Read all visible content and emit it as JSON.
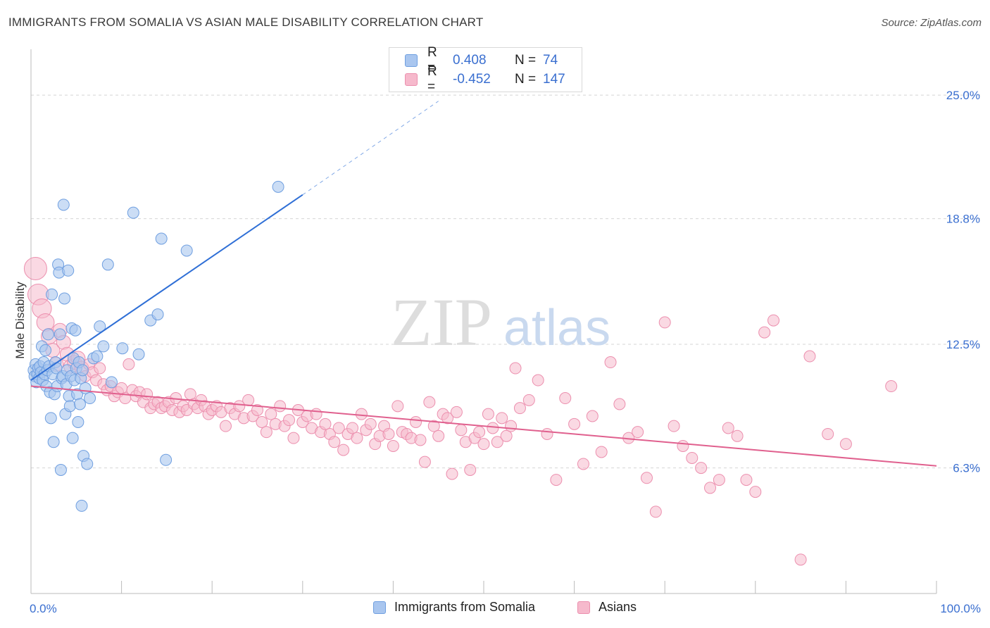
{
  "header": {
    "title": "IMMIGRANTS FROM SOMALIA VS ASIAN MALE DISABILITY CORRELATION CHART",
    "source": "Source: ZipAtlas.com"
  },
  "watermark": {
    "zip": "ZIP",
    "atlas": "atlas"
  },
  "colors": {
    "blue_fill": "#a9c6ef",
    "blue_stroke": "#6f9fe0",
    "blue_line": "#2f6fd6",
    "pink_fill": "#f6b9cc",
    "pink_stroke": "#ec8fae",
    "pink_line": "#e0608e",
    "tick_text": "#3a6fd0",
    "grid": "#d5d5d5"
  },
  "legend": {
    "rows": [
      {
        "r_label": "R =",
        "r_value": "0.408",
        "n_label": "N =",
        "n_value": "74"
      },
      {
        "r_label": "R =",
        "r_value": "-0.452",
        "n_label": "N =",
        "n_value": "147"
      }
    ]
  },
  "bottom_legend": {
    "series1": "Immigrants from Somalia",
    "series2": "Asians"
  },
  "chart_data": {
    "type": "scatter",
    "title": "IMMIGRANTS FROM SOMALIA VS ASIAN MALE DISABILITY CORRELATION CHART",
    "xlabel": "",
    "ylabel": "Male Disability",
    "xlim": [
      0,
      100
    ],
    "ylim": [
      0,
      27.3
    ],
    "x_tick_labels": [
      "0.0%",
      "100.0%"
    ],
    "y_ticks": [
      {
        "value": 6.3,
        "label": "6.3%"
      },
      {
        "value": 12.5,
        "label": "12.5%"
      },
      {
        "value": 18.8,
        "label": "18.8%"
      },
      {
        "value": 25.0,
        "label": "25.0%"
      }
    ],
    "grid": true,
    "legend_position": "top-center",
    "series": [
      {
        "name": "Immigrants from Somalia",
        "color": "#6f9fe0",
        "trend": {
          "x": [
            0,
            30
          ],
          "y": [
            10.7,
            20.0
          ],
          "dashed_to": [
            45,
            24.7
          ]
        },
        "points": [
          [
            0.3,
            11.2
          ],
          [
            0.4,
            10.9
          ],
          [
            0.5,
            11.5
          ],
          [
            0.6,
            10.6
          ],
          [
            0.7,
            11.0
          ],
          [
            0.8,
            11.3
          ],
          [
            0.9,
            10.8
          ],
          [
            1.0,
            11.4
          ],
          [
            1.1,
            11.1
          ],
          [
            1.2,
            12.4
          ],
          [
            1.3,
            10.7
          ],
          [
            1.4,
            11.6
          ],
          [
            1.5,
            11.0
          ],
          [
            1.6,
            12.2
          ],
          [
            1.7,
            10.4
          ],
          [
            1.8,
            11.2
          ],
          [
            1.9,
            13.0
          ],
          [
            2.0,
            11.4
          ],
          [
            2.1,
            10.1
          ],
          [
            2.2,
            8.8
          ],
          [
            2.3,
            15.0
          ],
          [
            2.4,
            11.0
          ],
          [
            2.5,
            7.6
          ],
          [
            2.6,
            10.0
          ],
          [
            2.7,
            11.6
          ],
          [
            2.8,
            11.3
          ],
          [
            2.9,
            10.4
          ],
          [
            3.0,
            16.5
          ],
          [
            3.1,
            16.1
          ],
          [
            3.2,
            13.0
          ],
          [
            3.3,
            6.2
          ],
          [
            3.4,
            10.8
          ],
          [
            3.5,
            10.9
          ],
          [
            3.6,
            19.5
          ],
          [
            3.7,
            14.8
          ],
          [
            3.8,
            9.0
          ],
          [
            3.9,
            10.5
          ],
          [
            4.0,
            11.2
          ],
          [
            4.1,
            16.2
          ],
          [
            4.2,
            9.9
          ],
          [
            4.3,
            9.4
          ],
          [
            4.4,
            10.9
          ],
          [
            4.5,
            13.3
          ],
          [
            4.6,
            7.8
          ],
          [
            4.7,
            11.8
          ],
          [
            4.8,
            10.7
          ],
          [
            4.9,
            13.2
          ],
          [
            5.0,
            11.3
          ],
          [
            5.1,
            10.0
          ],
          [
            5.2,
            8.6
          ],
          [
            5.3,
            11.6
          ],
          [
            5.4,
            9.5
          ],
          [
            5.5,
            10.8
          ],
          [
            5.6,
            4.4
          ],
          [
            5.7,
            11.2
          ],
          [
            5.8,
            6.9
          ],
          [
            6.0,
            10.3
          ],
          [
            6.2,
            6.5
          ],
          [
            6.5,
            9.8
          ],
          [
            6.9,
            11.8
          ],
          [
            7.3,
            11.9
          ],
          [
            7.6,
            13.4
          ],
          [
            8.0,
            12.4
          ],
          [
            8.5,
            16.5
          ],
          [
            8.9,
            10.6
          ],
          [
            10.1,
            12.3
          ],
          [
            11.3,
            19.1
          ],
          [
            11.9,
            12.0
          ],
          [
            13.2,
            13.7
          ],
          [
            14.0,
            14.0
          ],
          [
            14.4,
            17.8
          ],
          [
            14.9,
            6.7
          ],
          [
            17.2,
            17.2
          ],
          [
            27.3,
            20.4
          ]
        ]
      },
      {
        "name": "Asians",
        "color": "#ec8fae",
        "trend": {
          "x": [
            0,
            100
          ],
          "y": [
            10.4,
            6.4
          ]
        },
        "points": [
          [
            0.5,
            16.3
          ],
          [
            0.8,
            15.0
          ],
          [
            1.2,
            14.3
          ],
          [
            1.6,
            13.6
          ],
          [
            2.0,
            12.9
          ],
          [
            2.4,
            12.2
          ],
          [
            2.8,
            11.5
          ],
          [
            3.2,
            13.2
          ],
          [
            3.6,
            12.6
          ],
          [
            4.0,
            12.0
          ],
          [
            4.4,
            11.4
          ],
          [
            4.8,
            11.6
          ],
          [
            5.2,
            11.8
          ],
          [
            5.6,
            11.3
          ],
          [
            6.0,
            10.9
          ],
          [
            6.4,
            11.5
          ],
          [
            6.8,
            11.1
          ],
          [
            7.2,
            10.7
          ],
          [
            7.6,
            11.3
          ],
          [
            8.0,
            10.5
          ],
          [
            8.4,
            10.2
          ],
          [
            8.8,
            10.4
          ],
          [
            9.2,
            9.9
          ],
          [
            9.6,
            10.1
          ],
          [
            10.0,
            10.3
          ],
          [
            10.4,
            9.8
          ],
          [
            10.8,
            11.5
          ],
          [
            11.2,
            10.2
          ],
          [
            11.6,
            9.9
          ],
          [
            12.0,
            10.1
          ],
          [
            12.4,
            9.6
          ],
          [
            12.8,
            10.0
          ],
          [
            13.2,
            9.3
          ],
          [
            13.6,
            9.5
          ],
          [
            14.0,
            9.6
          ],
          [
            14.4,
            9.3
          ],
          [
            14.8,
            9.4
          ],
          [
            15.2,
            9.6
          ],
          [
            15.6,
            9.2
          ],
          [
            16.0,
            9.8
          ],
          [
            16.4,
            9.1
          ],
          [
            16.8,
            9.4
          ],
          [
            17.2,
            9.2
          ],
          [
            17.6,
            10.0
          ],
          [
            18.0,
            9.5
          ],
          [
            18.4,
            9.3
          ],
          [
            18.8,
            9.7
          ],
          [
            19.2,
            9.4
          ],
          [
            19.6,
            9.0
          ],
          [
            20.0,
            9.2
          ],
          [
            20.5,
            9.4
          ],
          [
            21.0,
            9.1
          ],
          [
            21.5,
            8.4
          ],
          [
            22.0,
            9.3
          ],
          [
            22.5,
            9.0
          ],
          [
            23.0,
            9.4
          ],
          [
            23.5,
            8.8
          ],
          [
            24.0,
            9.7
          ],
          [
            24.5,
            8.9
          ],
          [
            25.0,
            9.2
          ],
          [
            25.5,
            8.6
          ],
          [
            26.0,
            8.1
          ],
          [
            26.5,
            9.0
          ],
          [
            27.0,
            8.5
          ],
          [
            27.5,
            9.4
          ],
          [
            28.0,
            8.4
          ],
          [
            28.5,
            8.7
          ],
          [
            29.0,
            7.8
          ],
          [
            29.5,
            9.2
          ],
          [
            30.0,
            8.6
          ],
          [
            30.5,
            8.9
          ],
          [
            31.0,
            8.3
          ],
          [
            31.5,
            9.0
          ],
          [
            32.0,
            8.1
          ],
          [
            32.5,
            8.5
          ],
          [
            33.0,
            8.0
          ],
          [
            33.5,
            7.6
          ],
          [
            34.0,
            8.3
          ],
          [
            34.5,
            7.2
          ],
          [
            35.0,
            8.0
          ],
          [
            35.5,
            8.3
          ],
          [
            36.0,
            7.8
          ],
          [
            36.5,
            9.0
          ],
          [
            37.0,
            8.2
          ],
          [
            37.5,
            8.5
          ],
          [
            38.0,
            7.5
          ],
          [
            38.5,
            7.9
          ],
          [
            39.0,
            8.4
          ],
          [
            39.5,
            8.0
          ],
          [
            40.0,
            7.4
          ],
          [
            40.5,
            9.4
          ],
          [
            41.0,
            8.1
          ],
          [
            41.5,
            8.0
          ],
          [
            42.0,
            7.8
          ],
          [
            42.5,
            8.6
          ],
          [
            43.0,
            7.7
          ],
          [
            43.5,
            6.6
          ],
          [
            44.0,
            9.6
          ],
          [
            44.5,
            8.4
          ],
          [
            45.0,
            7.9
          ],
          [
            45.5,
            9.0
          ],
          [
            46.0,
            8.8
          ],
          [
            46.5,
            6.0
          ],
          [
            47.0,
            9.1
          ],
          [
            47.5,
            8.2
          ],
          [
            48.0,
            7.6
          ],
          [
            48.5,
            6.2
          ],
          [
            49.0,
            7.8
          ],
          [
            49.5,
            8.1
          ],
          [
            50.0,
            7.5
          ],
          [
            50.5,
            9.0
          ],
          [
            51.0,
            8.3
          ],
          [
            51.5,
            7.6
          ],
          [
            52.0,
            8.8
          ],
          [
            52.5,
            7.9
          ],
          [
            53.0,
            8.4
          ],
          [
            53.5,
            11.3
          ],
          [
            54.0,
            9.3
          ],
          [
            55.0,
            9.7
          ],
          [
            56.0,
            10.7
          ],
          [
            57.0,
            8.0
          ],
          [
            58.0,
            5.7
          ],
          [
            59.0,
            9.8
          ],
          [
            60.0,
            8.5
          ],
          [
            61.0,
            6.5
          ],
          [
            62.0,
            8.9
          ],
          [
            63.0,
            7.1
          ],
          [
            64.0,
            11.6
          ],
          [
            65.0,
            9.5
          ],
          [
            66.0,
            7.8
          ],
          [
            67.0,
            8.1
          ],
          [
            68.0,
            5.8
          ],
          [
            69.0,
            4.1
          ],
          [
            70.0,
            13.6
          ],
          [
            71.0,
            8.4
          ],
          [
            72.0,
            7.4
          ],
          [
            73.0,
            6.8
          ],
          [
            74.0,
            6.3
          ],
          [
            75.0,
            5.3
          ],
          [
            76.0,
            5.7
          ],
          [
            77.0,
            8.3
          ],
          [
            78.0,
            7.9
          ],
          [
            79.0,
            5.7
          ],
          [
            80.0,
            5.1
          ],
          [
            81.0,
            13.1
          ],
          [
            82.0,
            13.7
          ],
          [
            85.0,
            1.7
          ],
          [
            95.0,
            10.4
          ],
          [
            86.0,
            11.9
          ],
          [
            88.0,
            8.0
          ],
          [
            90.0,
            7.5
          ]
        ]
      }
    ]
  }
}
